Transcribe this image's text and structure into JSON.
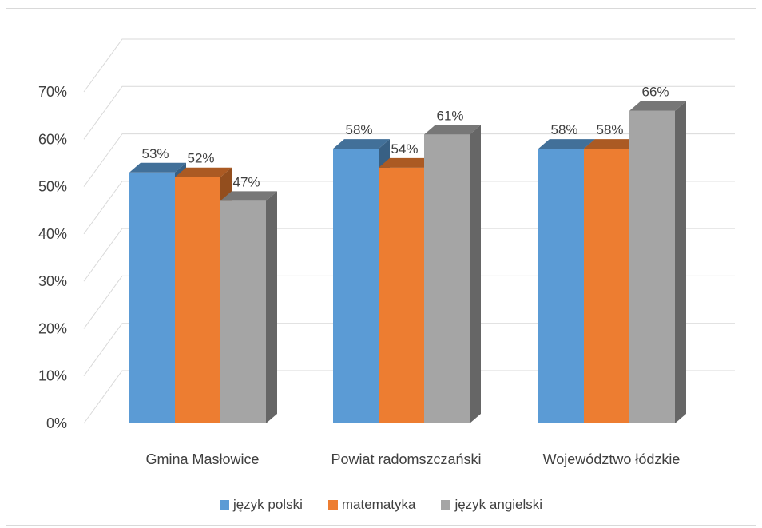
{
  "chart_data": {
    "type": "bar",
    "categories": [
      "Gmina Masłowice",
      "Powiat radomszczański",
      "Województwo łódzkie"
    ],
    "series": [
      {
        "name": "język polski",
        "values": [
          53,
          58,
          58
        ],
        "color": "#5b9bd5"
      },
      {
        "name": "matematyka",
        "values": [
          52,
          54,
          58
        ],
        "color": "#ed7d31"
      },
      {
        "name": "język angielski",
        "values": [
          47,
          61,
          66
        ],
        "color": "#a5a5a5"
      }
    ],
    "data_labels": [
      [
        "53%",
        "58%",
        "58%"
      ],
      [
        "52%",
        "54%",
        "58%"
      ],
      [
        "47%",
        "61%",
        "66%"
      ]
    ],
    "y_ticks": [
      "0%",
      "10%",
      "20%",
      "30%",
      "40%",
      "50%",
      "60%",
      "70%"
    ],
    "ylim": [
      0,
      70
    ],
    "grid": true,
    "three_d": true,
    "legend_position": "bottom",
    "title": "",
    "xlabel": "",
    "ylabel": ""
  }
}
